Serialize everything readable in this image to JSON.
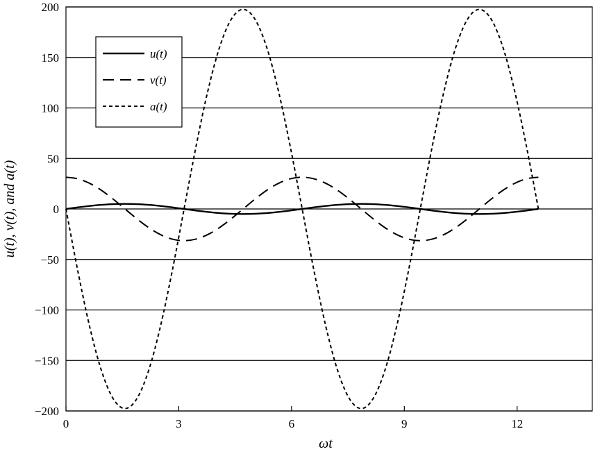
{
  "chart_data": {
    "type": "line",
    "title": "",
    "xlabel": "ωt",
    "ylabel": "u(t), v(t), and a(t)",
    "xlim": [
      0,
      14
    ],
    "ylim": [
      -200,
      200
    ],
    "x_ticks": [
      0,
      3,
      6,
      9,
      12
    ],
    "y_ticks": [
      200,
      150,
      100,
      50,
      0,
      -50,
      -100,
      -150,
      -200
    ],
    "x_tick_labels": [
      "0",
      "3",
      "6",
      "9",
      "12"
    ],
    "y_tick_labels": [
      "200",
      "150",
      "100",
      "50",
      "0",
      "−50",
      "−100",
      "−150",
      "−200"
    ],
    "grid": "horizontal",
    "legend_position": "top-left",
    "x": [
      0,
      0.3142,
      0.6283,
      0.9425,
      1.2566,
      1.5708,
      1.885,
      2.1991,
      2.5133,
      2.8274,
      3.1416,
      3.4558,
      3.7699,
      4.0841,
      4.3982,
      4.7124,
      5.0265,
      5.3407,
      5.6549,
      5.969,
      6.2832,
      6.5973,
      6.9115,
      7.2257,
      7.5398,
      7.854,
      8.1681,
      8.4823,
      8.7965,
      9.1106,
      9.4248,
      9.7389,
      10.0531,
      10.3673,
      10.6814,
      10.9956,
      11.3097,
      11.6239,
      11.9381,
      12.2522,
      12.5664
    ],
    "series": [
      {
        "name": "u(t)",
        "style": "solid",
        "values": [
          0,
          1.55,
          2.94,
          4.05,
          4.76,
          5,
          4.76,
          4.05,
          2.94,
          1.55,
          0,
          -1.55,
          -2.94,
          -4.05,
          -4.76,
          -5,
          -4.76,
          -4.05,
          -2.94,
          -1.55,
          0,
          1.55,
          2.94,
          4.05,
          4.76,
          5,
          4.76,
          4.05,
          2.94,
          1.55,
          0,
          -1.55,
          -2.94,
          -4.05,
          -4.76,
          -5,
          -4.76,
          -4.05,
          -2.94,
          -1.55,
          0
        ]
      },
      {
        "name": "v(t)",
        "style": "dashed",
        "values": [
          31.4,
          29.87,
          25.4,
          18.46,
          9.7,
          0,
          -9.7,
          -18.46,
          -25.4,
          -29.87,
          -31.4,
          -29.87,
          -25.4,
          -18.46,
          -9.7,
          0,
          9.7,
          18.46,
          25.4,
          29.87,
          31.4,
          29.87,
          25.4,
          18.46,
          9.7,
          0,
          -9.7,
          -18.46,
          -25.4,
          -29.87,
          -31.4,
          -29.87,
          -25.4,
          -18.46,
          -9.7,
          0,
          9.7,
          18.46,
          25.4,
          29.87,
          31.4
        ]
      },
      {
        "name": "a(t)",
        "style": "dotted",
        "values": [
          0,
          -61.2,
          -116.2,
          -159.9,
          -187.9,
          -197.6,
          -187.9,
          -159.9,
          -116.2,
          -61.2,
          0,
          61.2,
          116.2,
          159.9,
          187.9,
          197.6,
          187.9,
          159.9,
          116.2,
          61.2,
          0,
          -61.2,
          -116.2,
          -159.9,
          -187.9,
          -197.6,
          -187.9,
          -159.9,
          -116.2,
          -61.2,
          0,
          61.2,
          116.2,
          159.9,
          187.9,
          197.6,
          187.9,
          159.9,
          116.2,
          61.2,
          0
        ]
      }
    ]
  }
}
